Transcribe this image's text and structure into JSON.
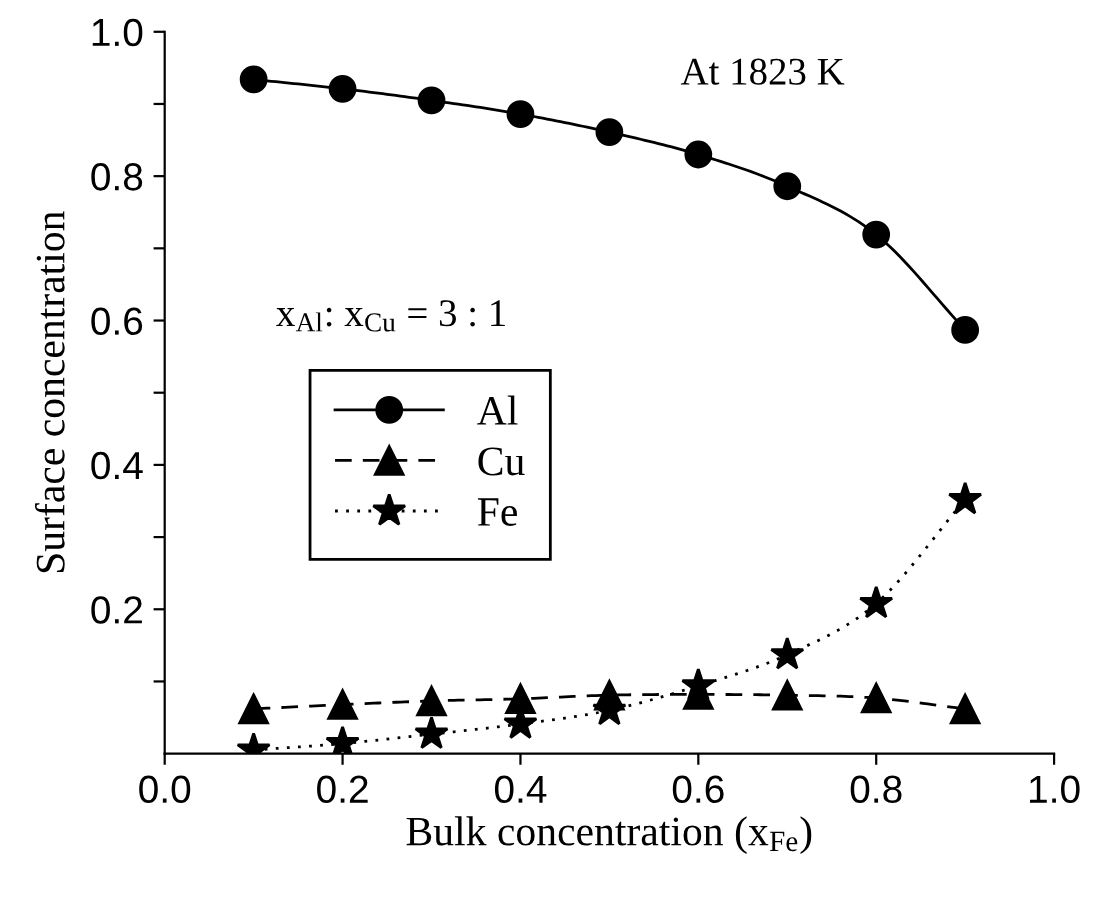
{
  "chart_data": {
    "type": "line",
    "xlabel": "Bulk concentration (x$_{Fe}$)",
    "ylabel": "Surface concentration",
    "annotations": [
      "At 1823 K",
      "x$_{Al}$: x$_{Cu}$ = 3 : 1"
    ],
    "x": [
      0.1,
      0.2,
      0.3,
      0.4,
      0.5,
      0.6,
      0.7,
      0.8,
      0.9
    ],
    "series": [
      {
        "name": "Al",
        "color": "#000000",
        "marker": "circle",
        "line_style": "solid",
        "values": [
          0.934,
          0.921,
          0.905,
          0.886,
          0.861,
          0.83,
          0.786,
          0.719,
          0.587
        ]
      },
      {
        "name": "Cu",
        "color": "#000000",
        "marker": "triangle",
        "line_style": "dashed",
        "values": [
          0.062,
          0.068,
          0.073,
          0.076,
          0.081,
          0.082,
          0.081,
          0.077,
          0.062
        ]
      },
      {
        "name": "Fe",
        "color": "#000000",
        "marker": "star",
        "line_style": "dotted",
        "values": [
          0.005,
          0.014,
          0.027,
          0.041,
          0.06,
          0.094,
          0.137,
          0.208,
          0.352
        ]
      }
    ],
    "xlim": [
      0.0,
      1.0
    ],
    "ylim": [
      0.0,
      1.0
    ],
    "xticks": [
      {
        "value": 0.0,
        "label": "0.0"
      },
      0.2,
      0.4,
      0.6,
      0.8,
      {
        "value": 1.0,
        "label": "1.0"
      }
    ],
    "yticks": [
      {
        "value": 0.1,
        "label": null
      },
      0.2,
      {
        "value": 0.3,
        "label": null
      },
      0.4,
      {
        "value": 0.5,
        "label": null
      },
      0.6,
      {
        "value": 0.7,
        "label": null
      },
      0.8,
      {
        "value": 0.9,
        "label": null
      },
      {
        "value": 1.0,
        "label": "1.0"
      }
    ],
    "grid": false,
    "legend": "center"
  }
}
